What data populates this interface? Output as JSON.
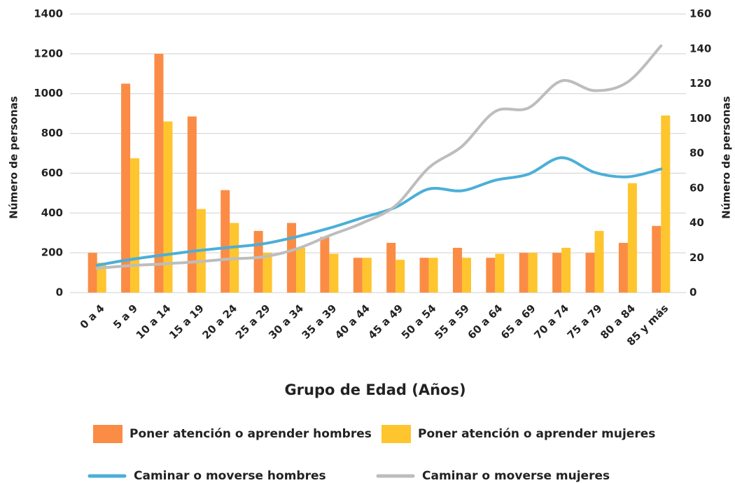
{
  "chart_data": {
    "type": "bar_line",
    "x_label": "Grupo de Edad (Años)",
    "y_label": "Número de personas",
    "y2_label": "Número de personas",
    "categories": [
      "0 a 4",
      "5 a 9",
      "10 a 14",
      "15 a 19",
      "20 a 24",
      "25 a 29",
      "30 a 34",
      "35 a 39",
      "40 a 44",
      "45 a 49",
      "50 a 54",
      "55 a 59",
      "60 a 64",
      "65 a 69",
      "70 a 74",
      "75 a 79",
      "80 a 84",
      "85 y más"
    ],
    "ylim": [
      0,
      1400
    ],
    "yticks": [
      0,
      200,
      400,
      600,
      800,
      1000,
      1200,
      1400
    ],
    "y2lim": [
      0,
      160
    ],
    "y2ticks": [
      0,
      20,
      40,
      60,
      80,
      100,
      120,
      140,
      160
    ],
    "grid": true,
    "series": [
      {
        "name": "Poner atención o aprender hombres",
        "type": "bar",
        "color": "#fb8c45",
        "values": [
          200,
          1050,
          1200,
          885,
          515,
          310,
          350,
          280,
          175,
          250,
          175,
          225,
          175,
          200,
          200,
          200,
          250,
          335
        ]
      },
      {
        "name": "Poner atención o aprender mujeres",
        "type": "bar",
        "color": "#fec52e",
        "values": [
          150,
          675,
          860,
          420,
          350,
          200,
          225,
          195,
          175,
          165,
          175,
          175,
          195,
          200,
          225,
          310,
          550,
          890
        ]
      },
      {
        "name": "Caminar o moverse hombres",
        "type": "line",
        "axis": "y2",
        "color": "#4bafd8",
        "values": [
          15.7,
          19,
          21.6,
          24,
          26,
          28,
          32,
          37,
          43,
          49,
          59.5,
          58.5,
          64.5,
          68,
          77.5,
          69,
          66.5,
          71
        ]
      },
      {
        "name": "Caminar o moverse mujeres",
        "type": "line",
        "axis": "y2",
        "color": "#bdbdbd",
        "values": [
          14,
          15.5,
          16.5,
          17.7,
          19.3,
          20.5,
          25,
          32.7,
          40,
          50,
          71.7,
          84,
          104,
          106,
          121.6,
          116,
          121,
          141.7
        ]
      }
    ]
  }
}
